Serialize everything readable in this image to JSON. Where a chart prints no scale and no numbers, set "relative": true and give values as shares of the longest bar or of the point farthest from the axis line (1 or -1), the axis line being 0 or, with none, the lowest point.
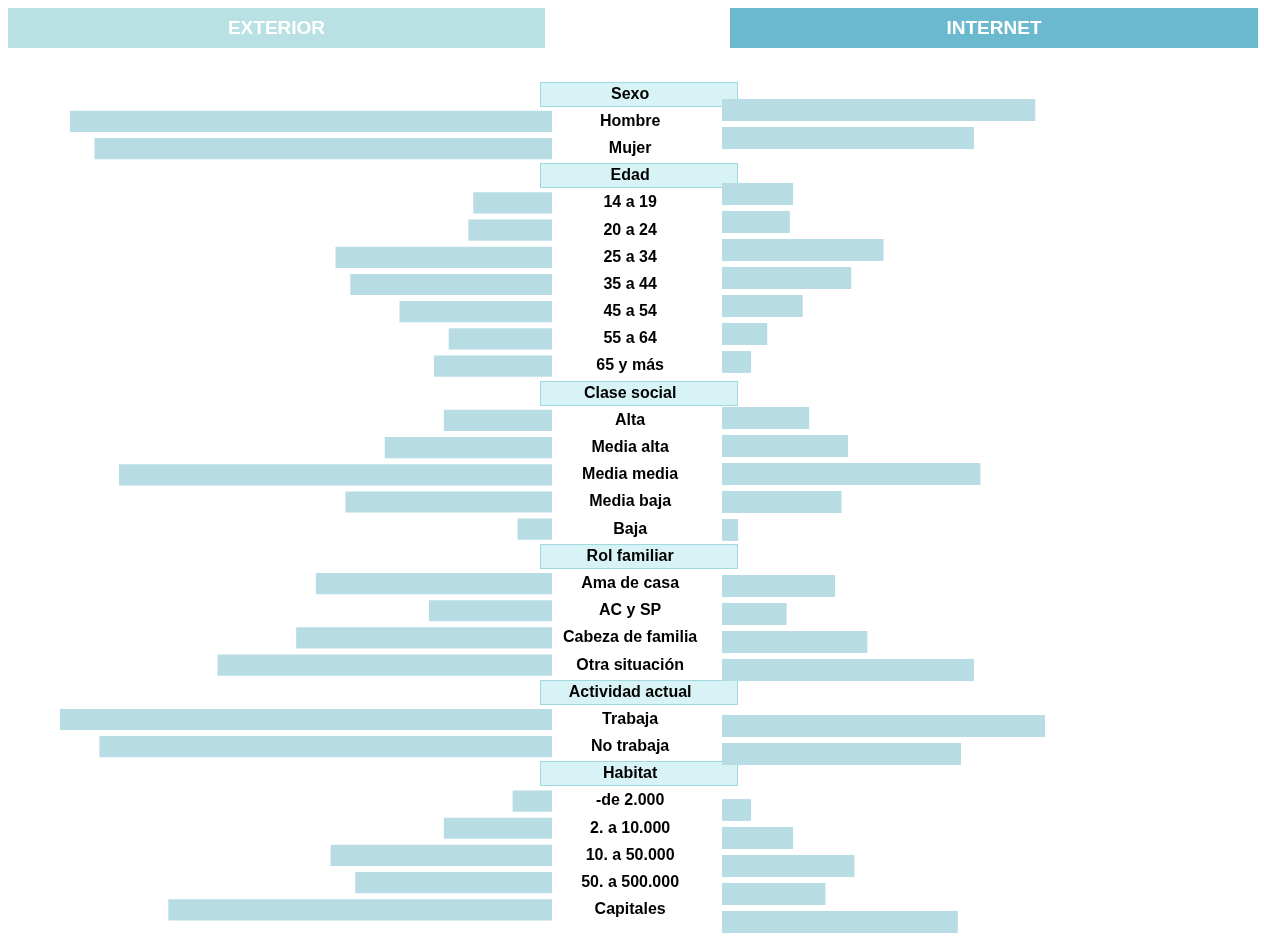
{
  "chart_data": [
    {
      "type": "bar",
      "title": "EXTERIOR",
      "orientation": "horizontal",
      "relative": true,
      "color": "#b8dce4",
      "categories": [
        "Sexo",
        "Hombre",
        "Mujer",
        "Edad",
        "14 a 19",
        "20 a 24",
        "25 a 34",
        "35 a 44",
        "45 a 54",
        "55 a 64",
        "65 y más",
        "Clase social",
        "Alta",
        "Media alta",
        "Media media",
        "Media baja",
        "Baja",
        "Rol familiar",
        "Ama de casa",
        "AC y SP",
        "Cabeza de familia",
        "Otra situación",
        "Actividad actual",
        "Trabaja",
        "No trabaja",
        "Habitat",
        "-de 2.000",
        "2. a 10.000",
        "10. a 50.000",
        "50. a 500.000",
        "Capitales"
      ],
      "values": [
        null,
        0.98,
        0.93,
        null,
        0.16,
        0.17,
        0.44,
        0.41,
        0.31,
        0.21,
        0.24,
        null,
        0.22,
        0.34,
        0.88,
        0.42,
        0.07,
        null,
        0.48,
        0.25,
        0.52,
        0.68,
        null,
        1,
        0.92,
        null,
        0.08,
        0.22,
        0.45,
        0.4,
        0.78
      ]
    },
    {
      "type": "bar",
      "title": "INTERNET",
      "orientation": "horizontal",
      "relative": true,
      "color": "#b8dce4",
      "tick_labels": false,
      "categories": [
        null,
        null,
        null,
        null,
        null,
        null,
        null,
        null,
        null,
        null,
        null,
        null,
        null,
        null,
        null,
        null,
        null,
        null,
        null,
        null,
        null,
        null,
        null,
        null,
        null,
        null,
        null,
        null,
        null,
        null,
        null
      ],
      "values": [
        null,
        0.97,
        0.78,
        null,
        0.22,
        0.21,
        0.5,
        0.4,
        0.25,
        0.14,
        0.09,
        null,
        0.27,
        0.39,
        0.8,
        0.37,
        0.05,
        null,
        0.35,
        0.2,
        0.45,
        0.78,
        null,
        1,
        0.74,
        null,
        0.09,
        0.22,
        0.41,
        0.32,
        0.73
      ]
    }
  ]
}
